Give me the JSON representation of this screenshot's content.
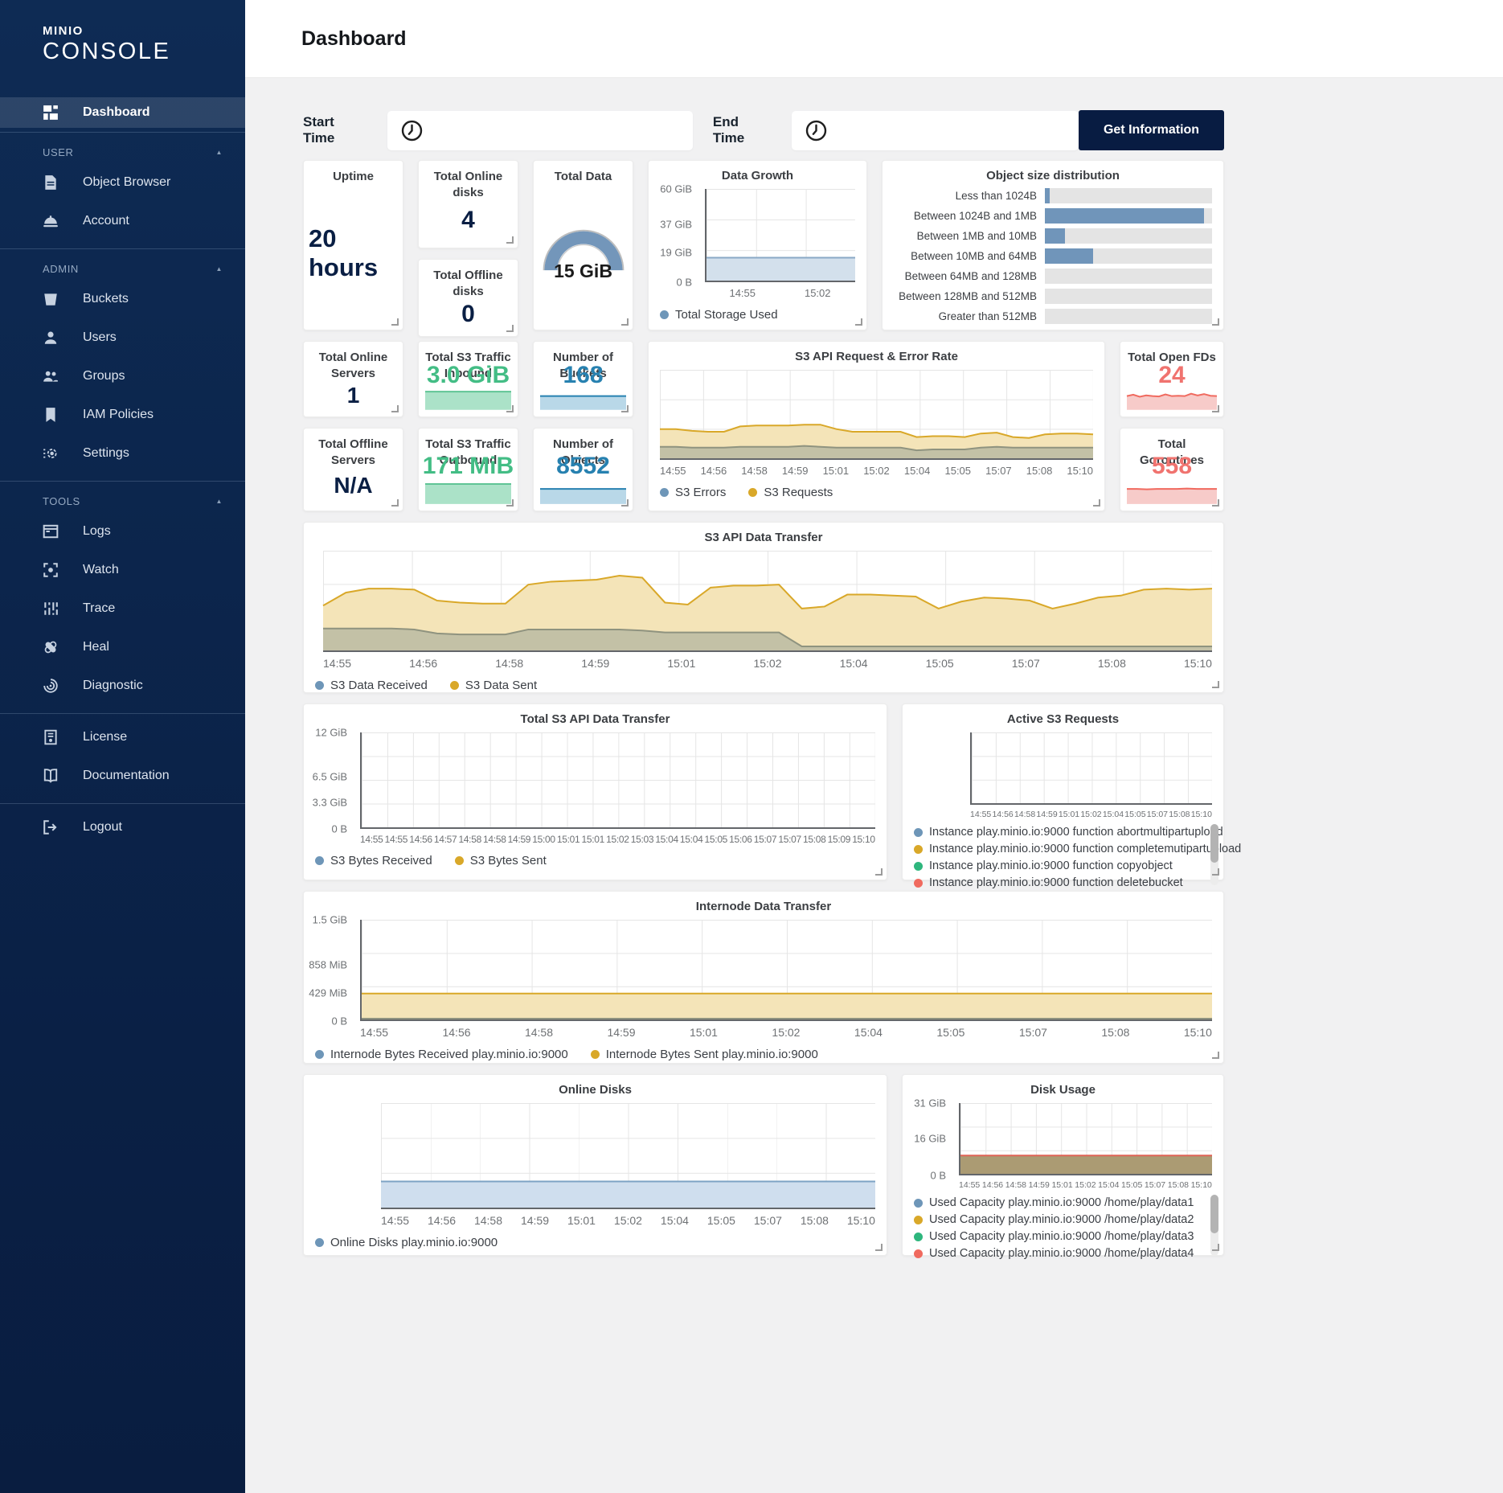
{
  "app": {
    "brand_line1": "MINIO",
    "brand_line2": "CONSOLE",
    "collapse_icon": "▲"
  },
  "header": {
    "title": "Dashboard"
  },
  "filters": {
    "start_label": "Start Time",
    "end_label": "End Time",
    "start_value": "",
    "end_value": "",
    "button_label": "Get Information"
  },
  "colors": {
    "navy": "#081C42",
    "blue": "#2781B0",
    "steel_blue": "#7095ba",
    "gold": "#d9a829",
    "green": "#43bd85",
    "red": "#f06a5f",
    "olive": "#8f937f",
    "brown": "#ab9b73"
  },
  "sidebar": {
    "sections": [
      {
        "label": null,
        "items": [
          {
            "icon": "dashboard",
            "label": "Dashboard",
            "active": true
          }
        ]
      },
      {
        "label": "USER",
        "items": [
          {
            "icon": "object-browser",
            "label": "Object Browser"
          },
          {
            "icon": "account",
            "label": "Account"
          }
        ]
      },
      {
        "label": "ADMIN",
        "items": [
          {
            "icon": "buckets",
            "label": "Buckets"
          },
          {
            "icon": "users",
            "label": "Users"
          },
          {
            "icon": "groups",
            "label": "Groups"
          },
          {
            "icon": "iam-policies",
            "label": "IAM Policies"
          },
          {
            "icon": "settings",
            "label": "Settings"
          }
        ]
      },
      {
        "label": "TOOLS",
        "items": [
          {
            "icon": "logs",
            "label": "Logs"
          },
          {
            "icon": "watch",
            "label": "Watch"
          },
          {
            "icon": "trace",
            "label": "Trace"
          },
          {
            "icon": "heal",
            "label": "Heal"
          },
          {
            "icon": "diagnostic",
            "label": "Diagnostic"
          }
        ]
      },
      {
        "label": null,
        "items": [
          {
            "icon": "license",
            "label": "License"
          },
          {
            "icon": "documentation",
            "label": "Documentation"
          }
        ]
      },
      {
        "label": null,
        "items": [
          {
            "icon": "logout",
            "label": "Logout"
          }
        ]
      }
    ]
  },
  "cards": {
    "uptime": {
      "title": "Uptime",
      "value": "20 hours"
    },
    "online_disks": {
      "title": "Total Online disks",
      "value": "4"
    },
    "offline_disks": {
      "title": "Total Offline disks",
      "value": "0"
    },
    "total_data": {
      "title": "Total Data",
      "value": "15 GiB"
    },
    "online_servers": {
      "title": "Total Online Servers",
      "value": "1"
    },
    "offline_servers": {
      "title": "Total Offline Servers",
      "value": "N/A"
    },
    "traffic_in": {
      "title": "Total S3 Traffic Inbound",
      "value": "3.0 GiB"
    },
    "traffic_out": {
      "title": "Total S3 Traffic Outbound",
      "value": "171 MiB"
    },
    "buckets": {
      "title": "Number of Buckets",
      "value": "168"
    },
    "objects": {
      "title": "Number of Objects",
      "value": "8552"
    },
    "open_fds": {
      "title": "Total Open FDs",
      "value": "24"
    },
    "goroutines": {
      "title": "Total Goroutines",
      "value": "558"
    }
  },
  "charts": {
    "data_growth": {
      "type": "area",
      "title": "Data Growth",
      "ymax": 60,
      "axes": "axes-lb",
      "yticks": [
        {
          "label": "60 GiB",
          "v": 60
        },
        {
          "label": "37 GiB",
          "v": 37
        },
        {
          "label": "19 GiB",
          "v": 19
        },
        {
          "label": "0 B",
          "v": 0
        }
      ],
      "xticks": [
        "14:55",
        "15:02"
      ],
      "series": [
        {
          "name": "Total Storage Used",
          "color": "#8aa9c6",
          "fill": "#d3e0ec",
          "values": [
            15,
            15
          ]
        }
      ],
      "legend": [
        {
          "label": "Total Storage Used",
          "color": "#6e96b8"
        }
      ]
    },
    "object_size_distribution": {
      "type": "bar",
      "title": "Object size distribution",
      "bar_color": "#7095ba",
      "track_color": "#e4e4e4",
      "rows": [
        {
          "label": "Less than 1024B",
          "pct": 3
        },
        {
          "label": "Between 1024B and 1MB",
          "pct": 95
        },
        {
          "label": "Between 1MB and 10MB",
          "pct": 12
        },
        {
          "label": "Between 10MB and 64MB",
          "pct": 29
        },
        {
          "label": "Between 64MB and 128MB",
          "pct": 0
        },
        {
          "label": "Between 128MB and 512MB",
          "pct": 0
        },
        {
          "label": "Greater than 512MB",
          "pct": 0
        }
      ]
    },
    "s3_request_error": {
      "type": "area",
      "title": "S3 API Request & Error Rate",
      "ymax": 100,
      "axes": "",
      "xticks": [
        "14:55",
        "14:56",
        "14:58",
        "14:59",
        "15:01",
        "15:02",
        "15:04",
        "15:05",
        "15:07",
        "15:08",
        "15:10"
      ],
      "series": [
        {
          "name": "S3 Requests",
          "color": "#d9a829",
          "fill": "#f4e4b8",
          "values": [
            33,
            33,
            31,
            30,
            30,
            36,
            37,
            37,
            37,
            38,
            38,
            33,
            30,
            30,
            30,
            30,
            24,
            25,
            25,
            24,
            28,
            29,
            24,
            23,
            27,
            28,
            28,
            27
          ]
        },
        {
          "name": "S3 Errors",
          "color": "#8f937f",
          "fill": "#c3c1a6",
          "values": [
            13,
            13,
            12,
            12,
            12,
            13,
            13,
            13,
            13,
            14,
            13,
            12,
            12,
            12,
            12,
            12,
            9,
            10,
            10,
            10,
            12,
            13,
            12,
            12,
            12,
            12,
            12,
            12
          ]
        }
      ],
      "legend": [
        {
          "label": "S3 Errors",
          "color": "#6e96b8"
        },
        {
          "label": "S3 Requests",
          "color": "#d9a829"
        }
      ]
    },
    "traffic_in_spark": {
      "type": "area",
      "ymax": 100,
      "series": [
        {
          "name": "inbound",
          "color": "#5fc495",
          "fill": "#abe2c8",
          "values": [
            53,
            53
          ]
        }
      ]
    },
    "traffic_out_spark": {
      "type": "area",
      "ymax": 100,
      "series": [
        {
          "name": "outbound",
          "color": "#5fc495",
          "fill": "#abe2c8",
          "values": [
            53,
            53
          ]
        }
      ]
    },
    "buckets_spark": {
      "type": "area",
      "ymax": 100,
      "series": [
        {
          "name": "buckets",
          "color": "#2781B0",
          "fill": "#b9d8e8",
          "values": [
            40,
            40
          ]
        }
      ]
    },
    "objects_spark": {
      "type": "area",
      "ymax": 100,
      "series": [
        {
          "name": "objects",
          "color": "#2781B0",
          "fill": "#b9d8e8",
          "values": [
            40,
            40
          ]
        }
      ]
    },
    "fds_spark": {
      "type": "area",
      "ymax": 100,
      "series": [
        {
          "name": "fds",
          "color": "#f06a5f",
          "fill": "#f7cbc9",
          "values": [
            40,
            44,
            38,
            42,
            40,
            39,
            45,
            40,
            41,
            40,
            47,
            42,
            46,
            41,
            40
          ]
        }
      ]
    },
    "goroutines_spark": {
      "type": "area",
      "ymax": 100,
      "series": [
        {
          "name": "goroutines",
          "color": "#f06a5f",
          "fill": "#f7cbc9",
          "values": [
            40,
            40,
            39,
            40,
            40,
            40,
            41,
            40,
            40,
            40
          ]
        }
      ]
    },
    "s3_api_data_transfer": {
      "type": "area",
      "title": "S3 API Data Transfer",
      "ymax": 100,
      "axes": "",
      "xticks": [
        "14:55",
        "14:56",
        "14:58",
        "14:59",
        "15:01",
        "15:02",
        "15:04",
        "15:05",
        "15:07",
        "15:08",
        "15:10"
      ],
      "series": [
        {
          "name": "S3 Data Sent",
          "color": "#d9a829",
          "fill": "#f4e4b8",
          "values": [
            45,
            58,
            62,
            62,
            61,
            50,
            48,
            47,
            47,
            66,
            69,
            70,
            71,
            75,
            73,
            48,
            46,
            63,
            65,
            65,
            66,
            42,
            44,
            56,
            56,
            55,
            54,
            42,
            49,
            53,
            52,
            50,
            42,
            47,
            53,
            55,
            61,
            62,
            61,
            62
          ]
        },
        {
          "name": "S3 Data Received",
          "color": "#8f937f",
          "fill": "#c3c1a6",
          "values": [
            22,
            22,
            22,
            22,
            21,
            17,
            16,
            16,
            16,
            21,
            21,
            21,
            21,
            21,
            20,
            18,
            18,
            18,
            18,
            18,
            18,
            4,
            4,
            4,
            4,
            4,
            4,
            4,
            4,
            4,
            4,
            4,
            4,
            4,
            4,
            4,
            4,
            4,
            4,
            4
          ]
        }
      ],
      "legend": [
        {
          "label": "S3 Data Received",
          "color": "#6e96b8"
        },
        {
          "label": "S3 Data Sent",
          "color": "#d9a829"
        }
      ]
    },
    "total_s3_api_transfer": {
      "type": "area",
      "title": "Total S3 API Data Transfer",
      "ymax": 12,
      "axes": "axes-lb",
      "yticks": [
        {
          "label": "12 GiB",
          "v": 12
        },
        {
          "label": "6.5 GiB",
          "v": 6.5
        },
        {
          "label": "3.3 GiB",
          "v": 3.3
        },
        {
          "label": "0 B",
          "v": 0
        }
      ],
      "xticks": [
        "14:55",
        "14:55",
        "14:56",
        "14:57",
        "14:58",
        "14:58",
        "14:59",
        "15:00",
        "15:01",
        "15:01",
        "15:02",
        "15:03",
        "15:04",
        "15:04",
        "15:05",
        "15:06",
        "15:07",
        "15:07",
        "15:08",
        "15:09",
        "15:10"
      ],
      "series": [],
      "legend": [
        {
          "label": "S3 Bytes Received",
          "color": "#6e96b8"
        },
        {
          "label": "S3 Bytes Sent",
          "color": "#d9a829"
        }
      ]
    },
    "active_s3": {
      "type": "area",
      "title": "Active S3 Requests",
      "ymax": 100,
      "axes": "axes-lb",
      "xticks": [
        "14:55",
        "14:56",
        "14:58",
        "14:59",
        "15:01",
        "15:02",
        "15:04",
        "15:05",
        "15:07",
        "15:08",
        "15:10"
      ],
      "series": [],
      "legend_vertical": true,
      "scroll": true,
      "legend": [
        {
          "label": "Instance play.minio.io:9000 function abortmultipartupload",
          "color": "#6e96b8"
        },
        {
          "label": "Instance play.minio.io:9000 function completemutipartupload",
          "color": "#d9a829"
        },
        {
          "label": "Instance play.minio.io:9000 function copyobject",
          "color": "#2eb67d"
        },
        {
          "label": "Instance play.minio.io:9000 function deletebucket",
          "color": "#f06a5f"
        }
      ]
    },
    "internode": {
      "type": "area",
      "title": "Internode Data Transfer",
      "ymax": 1536,
      "axes": "axes-lb",
      "yticks": [
        {
          "label": "1.5 GiB",
          "v": 1536
        },
        {
          "label": "858 MiB",
          "v": 858
        },
        {
          "label": "429 MiB",
          "v": 429
        },
        {
          "label": "0 B",
          "v": 0
        }
      ],
      "xticks": [
        "14:55",
        "14:56",
        "14:58",
        "14:59",
        "15:01",
        "15:02",
        "15:04",
        "15:05",
        "15:07",
        "15:08",
        "15:10"
      ],
      "series": [
        {
          "name": "Internode Bytes Sent play.minio.io:9000",
          "color": "#d9a829",
          "fill": "#f4e4b8",
          "values": [
            400,
            400
          ]
        },
        {
          "name": "Internode Bytes Received play.minio.io:9000",
          "color": "#8f937f",
          "fill": "#c3c1a6",
          "values": [
            12,
            12
          ]
        }
      ],
      "legend": [
        {
          "label": "Internode Bytes Received play.minio.io:9000",
          "color": "#6e96b8"
        },
        {
          "label": "Internode Bytes Sent play.minio.io:9000",
          "color": "#d9a829"
        }
      ]
    },
    "online_disks_chart": {
      "type": "area",
      "title": "Online Disks",
      "ymax": 100,
      "axes": "",
      "xticks": [
        "14:55",
        "14:56",
        "14:58",
        "14:59",
        "15:01",
        "15:02",
        "15:04",
        "15:05",
        "15:07",
        "15:08",
        "15:10"
      ],
      "series": [
        {
          "name": "Online Disks play.minio.io:9000",
          "color": "#7da3c4",
          "fill": "#cfdeee",
          "values": [
            25,
            25
          ]
        }
      ],
      "legend": [
        {
          "label": "Online Disks play.minio.io:9000",
          "color": "#6e96b8"
        }
      ]
    },
    "disk_usage": {
      "type": "area",
      "title": "Disk Usage",
      "ymax": 31,
      "axes": "axes-lb",
      "yticks": [
        {
          "label": "31 GiB",
          "v": 31
        },
        {
          "label": "16 GiB",
          "v": 16
        },
        {
          "label": "0 B",
          "v": 0
        }
      ],
      "xticks": [
        "14:55",
        "14:56",
        "14:58",
        "14:59",
        "15:01",
        "15:02",
        "15:04",
        "15:05",
        "15:07",
        "15:08",
        "15:10"
      ],
      "series": [
        {
          "name": "Used Capacity",
          "color": "#df6356",
          "fill": "#ab9b73",
          "values": [
            8,
            8
          ]
        }
      ],
      "legend_vertical": true,
      "scroll": true,
      "legend": [
        {
          "label": "Used Capacity play.minio.io:9000 /home/play/data1",
          "color": "#6e96b8"
        },
        {
          "label": "Used Capacity play.minio.io:9000 /home/play/data2",
          "color": "#d9a829"
        },
        {
          "label": "Used Capacity play.minio.io:9000 /home/play/data3",
          "color": "#2eb67d"
        },
        {
          "label": "Used Capacity play.minio.io:9000 /home/play/data4",
          "color": "#f06a5f"
        }
      ]
    }
  }
}
